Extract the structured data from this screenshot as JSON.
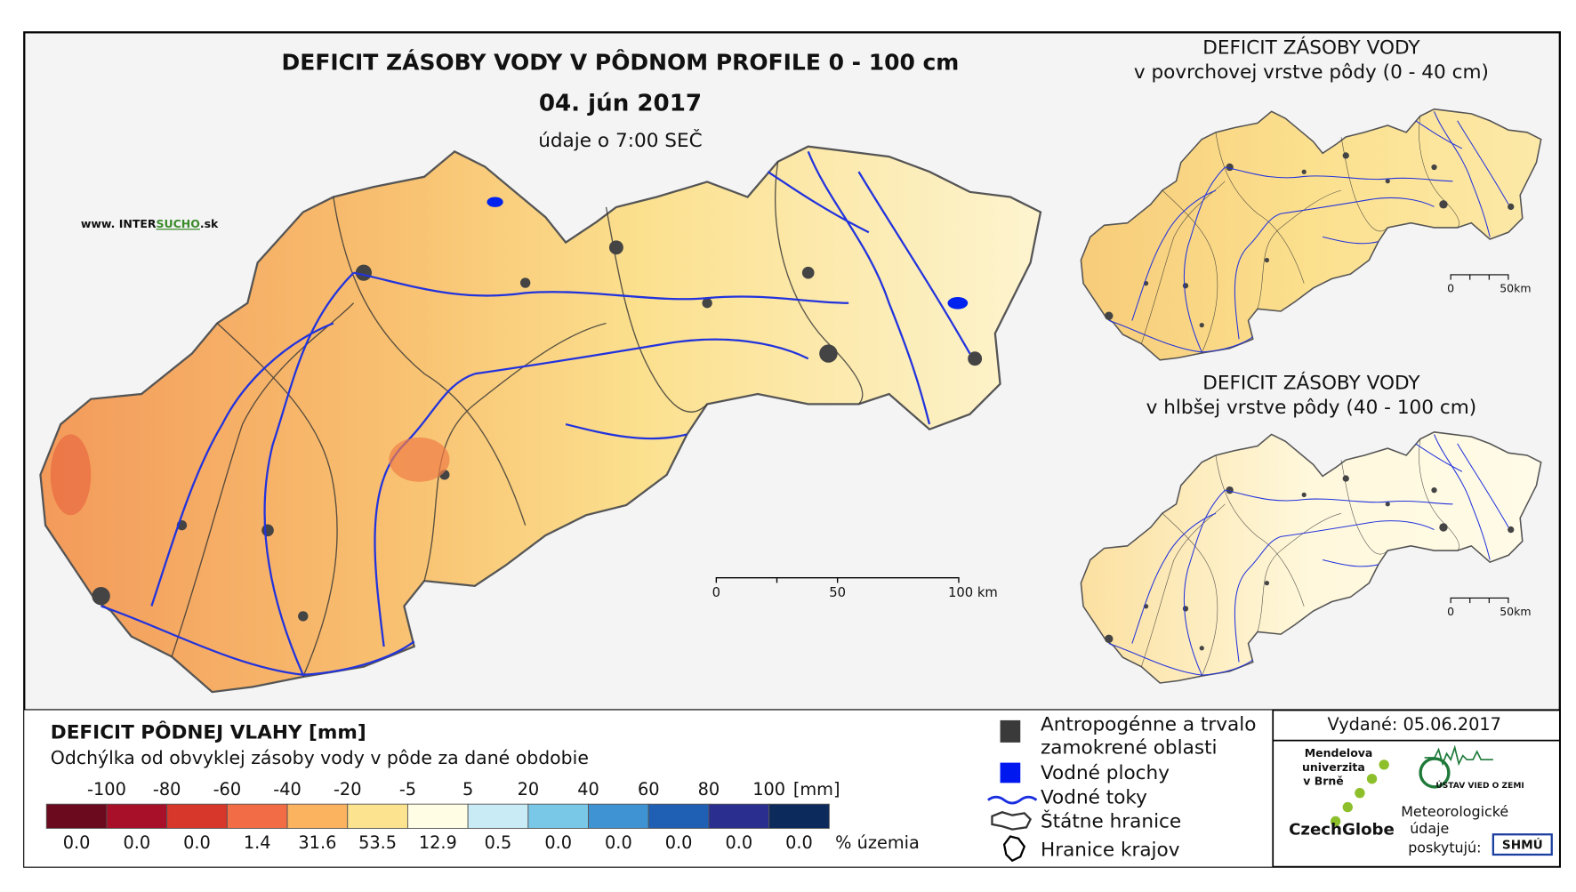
{
  "main_map": {
    "title": "DEFICIT ZÁSOBY VODY V PÔDNOM PROFILE 0 - 100 cm",
    "date": "04. jún 2017",
    "subtitle": "údaje o 7:00 SEČ",
    "scale_labels": [
      "0",
      "50",
      "100 km"
    ]
  },
  "website": {
    "prefix": "www. INTER",
    "highlight": "SUCHO",
    "suffix": ".sk"
  },
  "inset_top": {
    "title": "DEFICIT ZÁSOBY VODY",
    "subtitle": "v povrchovej vrstve pôdy (0 - 40 cm)",
    "scale_labels": [
      "0",
      "50km"
    ]
  },
  "inset_bottom": {
    "title": "DEFICIT ZÁSOBY VODY",
    "subtitle": "v hlbšej vrstve pôdy (40 - 100 cm)",
    "scale_labels": [
      "0",
      "50km"
    ]
  },
  "legend": {
    "title": "DEFICIT PÔDNEJ VLAHY [mm]",
    "subtitle": "Odchýlka od obvyklej zásoby vody v pôde za dané obdobie",
    "unit": "[mm]",
    "thresholds": [
      "-100",
      "-80",
      "-60",
      "-40",
      "-20",
      "-5",
      "5",
      "20",
      "40",
      "60",
      "80",
      "100"
    ],
    "colors": [
      "#6b0a1e",
      "#a8102a",
      "#d7362a",
      "#f26c45",
      "#fbb35f",
      "#fbe38f",
      "#fffde3",
      "#c9ebf6",
      "#79c8e8",
      "#3f93d3",
      "#1f5fb4",
      "#2a2f8f",
      "#0d2a5c"
    ],
    "shares": [
      "0.0",
      "0.0",
      "0.0",
      "1.4",
      "31.6",
      "53.5",
      "12.9",
      "0.5",
      "0.0",
      "0.0",
      "0.0",
      "0.0",
      "0.0"
    ],
    "share_unit": "% územia"
  },
  "symbols": {
    "anthropogenic": [
      "Antropogénne a trvalo",
      "zamokrené oblasti"
    ],
    "water_areas": "Vodné plochy",
    "rivers": "Vodné toky",
    "state_border": "Štátne hranice",
    "region_border": "Hranice krajov"
  },
  "issued": "Vydané: 05.06.2017",
  "logos": {
    "mendel": [
      "Mendelova",
      "univerzita",
      "v Brně"
    ],
    "czechglobe": "CzechGlobe",
    "uvz": "ÚSTAV VIED O ZEMI",
    "meteo": [
      "Meteorologické",
      "údaje",
      "poskytujú:"
    ],
    "shmu": "SHMÚ"
  }
}
